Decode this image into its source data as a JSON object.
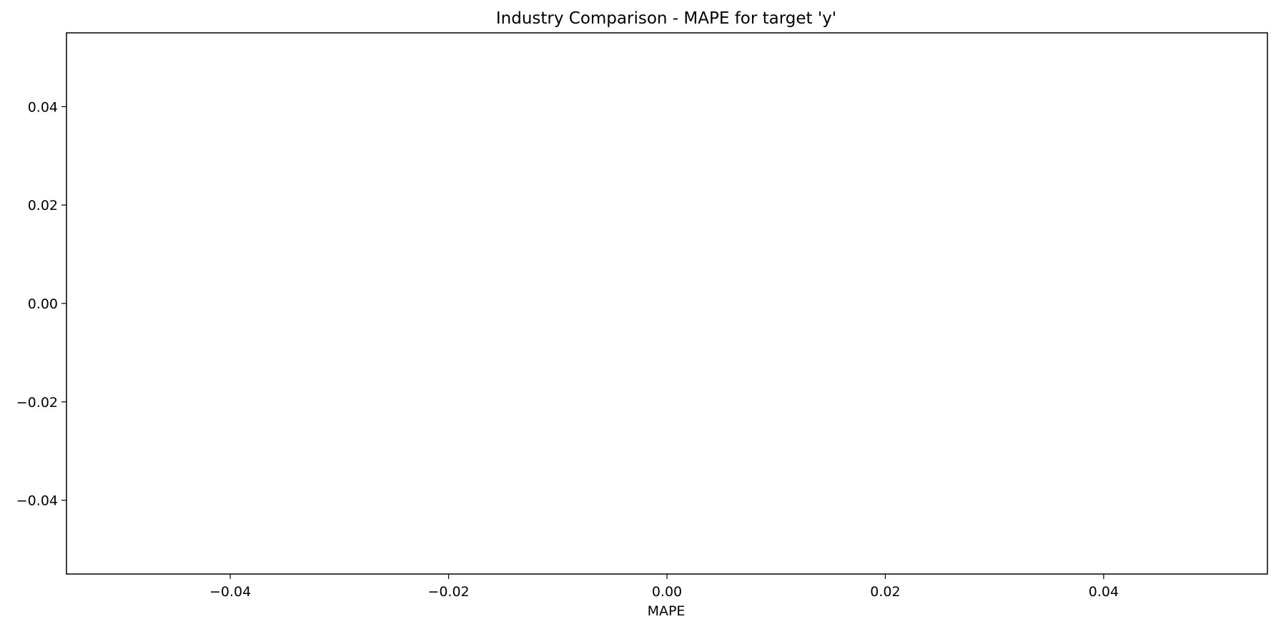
{
  "chart_data": {
    "type": "bar",
    "orientation": "horizontal",
    "title": "Industry Comparison - MAPE for target 'y'",
    "xlabel": "MAPE",
    "ylabel": "",
    "categories": [],
    "values": [],
    "xlim": [
      -0.055,
      0.055
    ],
    "ylim": [
      -0.055,
      0.055
    ],
    "xticks": [
      "−0.04",
      "−0.02",
      "0.00",
      "0.02",
      "0.04"
    ],
    "xtick_values": [
      -0.04,
      -0.02,
      0.0,
      0.02,
      0.04
    ],
    "yticks": [
      "0.04",
      "0.02",
      "0.00",
      "−0.02",
      "−0.04"
    ],
    "ytick_values": [
      0.04,
      0.02,
      0.0,
      -0.02,
      -0.04
    ],
    "grid": false,
    "legend": "none",
    "colors": {
      "axes": "#000000",
      "background": "#ffffff"
    }
  }
}
